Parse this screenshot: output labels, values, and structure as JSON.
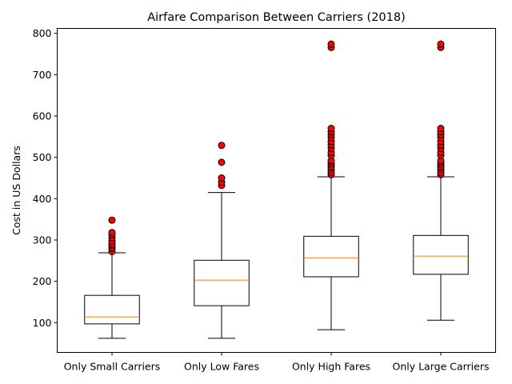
{
  "chart_data": {
    "type": "boxplot",
    "title": "Airfare Comparison Between Carriers (2018)",
    "xlabel": "",
    "ylabel": "Cost in US Dollars",
    "ylim": [
      28,
      812
    ],
    "yticks": [
      100,
      200,
      300,
      400,
      500,
      600,
      700,
      800
    ],
    "grid": false,
    "colors": {
      "box": "#000000",
      "median": "#ff7f0e",
      "outlier_fill": "#ff0000",
      "outlier_edge": "#000000"
    },
    "categories": [
      "Only Small Carriers",
      "Only Low Fares",
      "Only High Fares",
      "Only Large Carriers"
    ],
    "boxes": [
      {
        "whisker_low": 62,
        "q1": 97,
        "median": 114,
        "q3": 166,
        "whisker_high": 269,
        "outliers": [
          272,
          280,
          285,
          290,
          297,
          305,
          313,
          318,
          348
        ]
      },
      {
        "whisker_low": 62,
        "q1": 141,
        "median": 203,
        "q3": 251,
        "whisker_high": 415,
        "outliers": [
          432,
          440,
          450,
          488,
          529
        ]
      },
      {
        "whisker_low": 83,
        "q1": 211,
        "median": 257,
        "q3": 309,
        "whisker_high": 453,
        "outliers": [
          458,
          463,
          470,
          476,
          482,
          487,
          492,
          505,
          512,
          522,
          530,
          538,
          548,
          555,
          562,
          570,
          766,
          774
        ]
      },
      {
        "whisker_low": 106,
        "q1": 217,
        "median": 261,
        "q3": 311,
        "whisker_high": 453,
        "outliers": [
          458,
          463,
          470,
          476,
          482,
          487,
          492,
          505,
          512,
          522,
          530,
          538,
          548,
          555,
          562,
          570,
          766,
          774
        ]
      }
    ]
  }
}
